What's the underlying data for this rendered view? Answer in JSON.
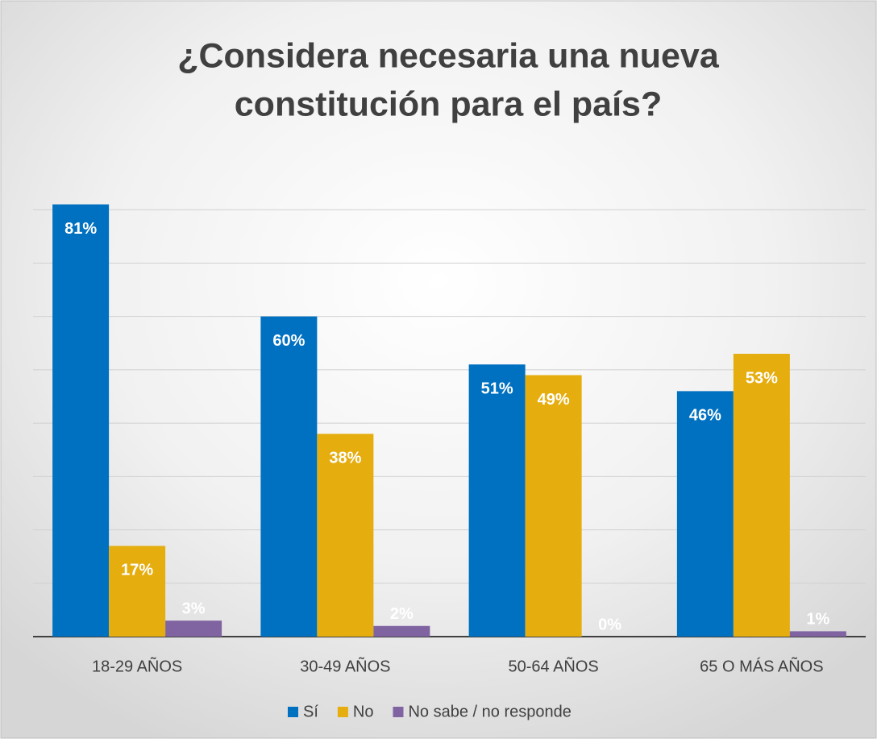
{
  "chart_data": {
    "type": "bar",
    "title": [
      "¿Considera necesaria una nueva",
      "constitución para el país?"
    ],
    "categories": [
      "18-29 AÑOS",
      "30-49 AÑOS",
      "50-64 AÑOS",
      "65 O MÁS AÑOS"
    ],
    "series": [
      {
        "name": "Sí",
        "color": "#0070c0",
        "values": [
          81,
          60,
          51,
          46
        ],
        "value_labels": [
          "81%",
          "60%",
          "51%",
          "46%"
        ]
      },
      {
        "name": "No",
        "color": "#e6ad0f",
        "values": [
          17,
          38,
          49,
          53
        ],
        "value_labels": [
          "17%",
          "38%",
          "49%",
          "53%"
        ]
      },
      {
        "name": "No sabe / no responde",
        "color": "#8064a2",
        "values": [
          3,
          2,
          0,
          1
        ],
        "value_labels": [
          "3%",
          "2%",
          "0%",
          "1%"
        ]
      }
    ],
    "ylim": [
      0,
      90
    ],
    "yticks": [
      0,
      10,
      20,
      30,
      40,
      50,
      60,
      70,
      80
    ],
    "grid": true,
    "legend": "bottom"
  }
}
